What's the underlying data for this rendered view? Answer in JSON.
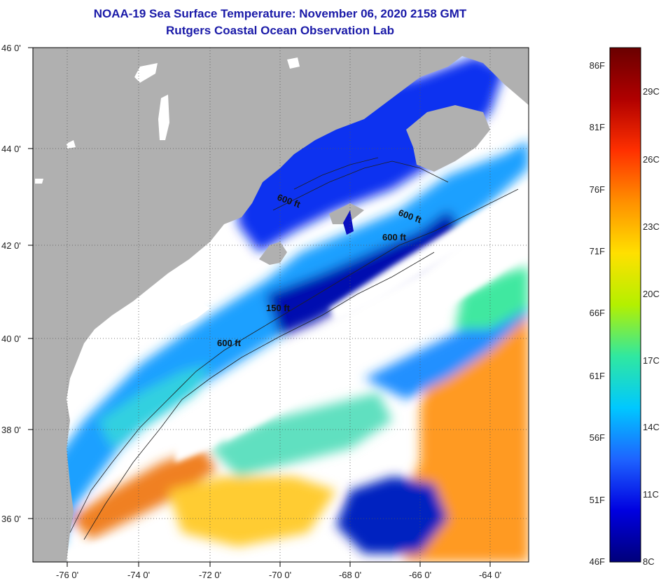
{
  "title": {
    "line1": "NOAA-19 Sea Surface Temperature:  November 06, 2020 2158 GMT",
    "line2": "Rutgers Coastal Ocean Observation Lab"
  },
  "map": {
    "lat_labels": [
      "46 0'",
      "44 0'",
      "42 0'",
      "40 0'",
      "38 0'",
      "36 0'"
    ],
    "lat_values": [
      46,
      44,
      42,
      40,
      38,
      36
    ],
    "lon_labels": [
      "-76 0'",
      "-74 0'",
      "-72 0'",
      "-70 0'",
      "-68 0'",
      "-66 0'",
      "-64 0'"
    ],
    "lon_values": [
      -76,
      -74,
      -72,
      -70,
      -68,
      -66,
      -64
    ],
    "lat_range": [
      35,
      46
    ],
    "lon_range": [
      -77,
      -63
    ],
    "contour_labels": [
      "600 ft",
      "600 ft",
      "600 ft",
      "150 ft",
      "600 ft"
    ],
    "colors": {
      "land": "#b0b0b0",
      "cloud": "#ffffff"
    }
  },
  "colorbar": {
    "fahrenheit": [
      "86F",
      "81F",
      "76F",
      "71F",
      "66F",
      "61F",
      "56F",
      "51F",
      "46F"
    ],
    "celsius": [
      "29C",
      "26C",
      "23C",
      "20C",
      "17C",
      "14C",
      "11C",
      "8C"
    ],
    "stops": [
      "#00007a",
      "#0000e0",
      "#1e64ff",
      "#00c8ff",
      "#30e8a0",
      "#b4f000",
      "#ffe000",
      "#ff9000",
      "#ff3000",
      "#b00000",
      "#6a0000"
    ]
  }
}
